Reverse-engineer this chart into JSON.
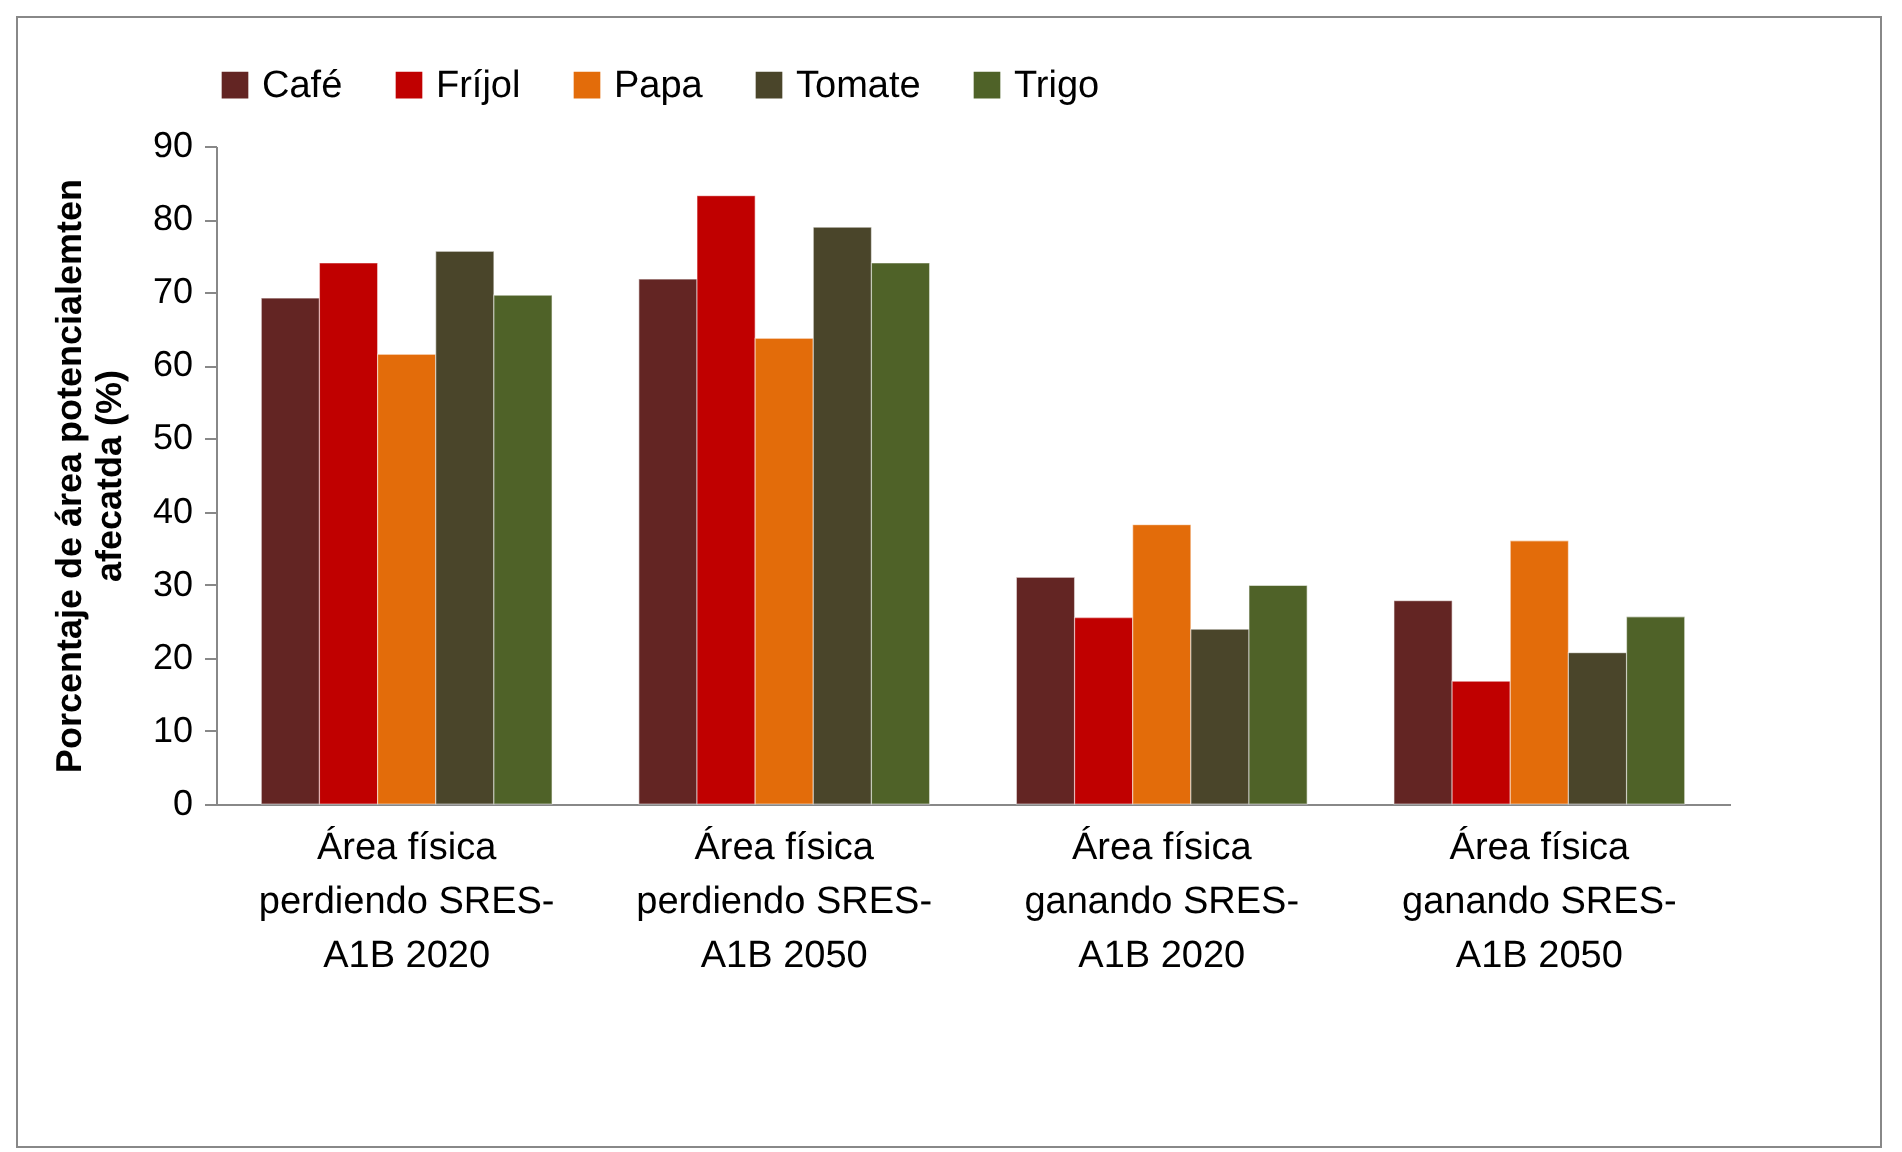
{
  "chart_data": {
    "type": "bar",
    "ylabel": "Porcentaje de área potencialemten afecatda (%)",
    "categories": [
      "Área física perdiendo SRES-A1B 2020",
      "Área física perdiendo SRES-A1B 2050",
      "Área física ganando SRES-A1B 2020",
      "Área física ganando SRES-A1B 2050"
    ],
    "series": [
      {
        "name": "Café",
        "color": "#632523",
        "values": [
          69.2,
          71.8,
          31.0,
          27.8
        ]
      },
      {
        "name": "Fríjol",
        "color": "#c00000",
        "values": [
          74.0,
          83.2,
          25.5,
          16.8
        ]
      },
      {
        "name": "Papa",
        "color": "#e36c0a",
        "values": [
          61.5,
          63.7,
          38.2,
          36.0
        ]
      },
      {
        "name": "Tomate",
        "color": "#4a452a",
        "values": [
          75.6,
          78.9,
          23.9,
          20.7
        ]
      },
      {
        "name": "Trigo",
        "color": "#4f6228",
        "values": [
          69.6,
          74.0,
          29.9,
          25.6
        ]
      }
    ],
    "ylim": [
      0,
      90
    ],
    "yticks": [
      0,
      10,
      20,
      30,
      40,
      50,
      60,
      70,
      80,
      90
    ],
    "legend": "top",
    "grid": false
  }
}
